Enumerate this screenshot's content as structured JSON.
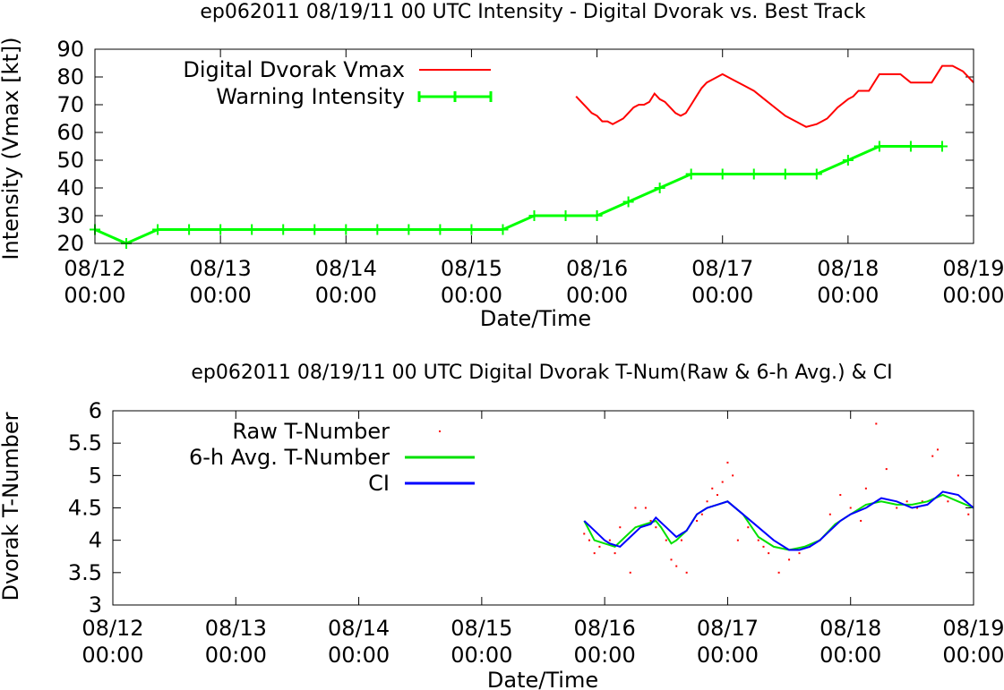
{
  "chart_data": [
    {
      "type": "line",
      "title": "ep062011 08/19/11  00 UTC Intensity - Digital Dvorak vs. Best Track",
      "xlabel": "Date/Time",
      "ylabel": "Intensity (Vmax [kt])",
      "xlim": [
        "08/12 00:00",
        "08/19 00:00"
      ],
      "ylim": [
        20,
        90
      ],
      "yticks": [
        "20",
        "30",
        "40",
        "50",
        "60",
        "70",
        "80",
        "90"
      ],
      "xticks": [
        {
          "date": "08/12",
          "time": "00:00"
        },
        {
          "date": "08/13",
          "time": "00:00"
        },
        {
          "date": "08/14",
          "time": "00:00"
        },
        {
          "date": "08/15",
          "time": "00:00"
        },
        {
          "date": "08/16",
          "time": "00:00"
        },
        {
          "date": "08/17",
          "time": "00:00"
        },
        {
          "date": "08/18",
          "time": "00:00"
        },
        {
          "date": "08/19",
          "time": "00:00"
        }
      ],
      "legend_position": "top-left",
      "series": [
        {
          "name": "Digital Dvorak Vmax",
          "color": "#ff0000",
          "style": "line",
          "x": [
            "08/15 20:00",
            "08/15 21:00",
            "08/15 22:00",
            "08/15 23:00",
            "08/16 00:00",
            "08/16 01:00",
            "08/16 02:00",
            "08/16 03:00",
            "08/16 04:00",
            "08/16 05:00",
            "08/16 06:00",
            "08/16 07:00",
            "08/16 08:00",
            "08/16 09:00",
            "08/16 10:00",
            "08/16 11:00",
            "08/16 12:00",
            "08/16 13:00",
            "08/16 14:00",
            "08/16 15:00",
            "08/16 16:00",
            "08/16 17:00",
            "08/16 18:00",
            "08/16 19:00",
            "08/16 20:00",
            "08/16 21:00",
            "08/16 22:00",
            "08/17 00:00",
            "08/17 02:00",
            "08/17 04:00",
            "08/17 06:00",
            "08/17 08:00",
            "08/17 10:00",
            "08/17 12:00",
            "08/17 14:00",
            "08/17 15:00",
            "08/17 16:00",
            "08/17 18:00",
            "08/17 19:00",
            "08/17 20:00",
            "08/17 22:00",
            "08/18 00:00",
            "08/18 01:00",
            "08/18 02:00",
            "08/18 04:00",
            "08/18 06:00",
            "08/18 08:00",
            "08/18 10:00",
            "08/18 12:00",
            "08/18 14:00",
            "08/18 16:00",
            "08/18 18:00",
            "08/18 20:00",
            "08/18 22:00",
            "08/19 00:00"
          ],
          "y": [
            73,
            71,
            69,
            67,
            66,
            64,
            64,
            63,
            64,
            65,
            67,
            69,
            70,
            70,
            71,
            74,
            72,
            71,
            69,
            67,
            66,
            67,
            70,
            73,
            76,
            78,
            79,
            81,
            79,
            77,
            75,
            72,
            69,
            66,
            64,
            63,
            62,
            63,
            64,
            65,
            69,
            72,
            73,
            75,
            75,
            81,
            81,
            81,
            78,
            78,
            78,
            84,
            84,
            82,
            78
          ]
        },
        {
          "name": "Warning Intensity",
          "color": "#00ff00",
          "style": "line-plus",
          "x": [
            "08/12 00:00",
            "08/12 06:00",
            "08/12 12:00",
            "08/12 18:00",
            "08/13 00:00",
            "08/13 06:00",
            "08/13 12:00",
            "08/13 18:00",
            "08/14 00:00",
            "08/14 06:00",
            "08/14 12:00",
            "08/14 18:00",
            "08/15 00:00",
            "08/15 06:00",
            "08/15 12:00",
            "08/15 18:00",
            "08/16 00:00",
            "08/16 06:00",
            "08/16 12:00",
            "08/16 18:00",
            "08/17 00:00",
            "08/17 06:00",
            "08/17 12:00",
            "08/17 18:00",
            "08/18 00:00",
            "08/18 06:00",
            "08/18 12:00",
            "08/18 18:00"
          ],
          "y": [
            25,
            20,
            25,
            25,
            25,
            25,
            25,
            25,
            25,
            25,
            25,
            25,
            25,
            25,
            30,
            30,
            30,
            35,
            40,
            45,
            45,
            45,
            45,
            45,
            50,
            55,
            55,
            55
          ]
        }
      ]
    },
    {
      "type": "line",
      "title": "ep062011 08/19/11  00 UTC Digital Dvorak T-Num(Raw & 6-h Avg.) & CI",
      "xlabel": "Date/Time",
      "ylabel": "Dvorak T-Number",
      "xlim": [
        "08/12 00:00",
        "08/19 00:00"
      ],
      "ylim": [
        3,
        6
      ],
      "yticks": [
        "3",
        "3.5",
        "4",
        "4.5",
        "5",
        "5.5",
        "6"
      ],
      "xticks": [
        {
          "date": "08/12",
          "time": "00:00"
        },
        {
          "date": "08/13",
          "time": "00:00"
        },
        {
          "date": "08/14",
          "time": "00:00"
        },
        {
          "date": "08/15",
          "time": "00:00"
        },
        {
          "date": "08/16",
          "time": "00:00"
        },
        {
          "date": "08/17",
          "time": "00:00"
        },
        {
          "date": "08/18",
          "time": "00:00"
        },
        {
          "date": "08/19",
          "time": "00:00"
        }
      ],
      "legend_position": "top-left",
      "series": [
        {
          "name": "Raw T-Number",
          "color": "#ff0000",
          "style": "dots",
          "x": [
            "08/15 20:00",
            "08/15 21:00",
            "08/15 22:00",
            "08/15 23:00",
            "08/16 01:00",
            "08/16 02:00",
            "08/16 03:00",
            "08/16 05:00",
            "08/16 06:00",
            "08/16 08:00",
            "08/16 09:00",
            "08/16 10:00",
            "08/16 12:00",
            "08/16 13:00",
            "08/16 14:00",
            "08/16 15:00",
            "08/16 16:00",
            "08/16 18:00",
            "08/16 19:00",
            "08/16 20:00",
            "08/16 21:00",
            "08/16 22:00",
            "08/16 23:00",
            "08/17 00:00",
            "08/17 01:00",
            "08/17 02:00",
            "08/17 04:00",
            "08/17 06:00",
            "08/17 07:00",
            "08/17 08:00",
            "08/17 10:00",
            "08/17 12:00",
            "08/17 14:00",
            "08/17 16:00",
            "08/17 18:00",
            "08/17 20:00",
            "08/17 22:00",
            "08/18 00:00",
            "08/18 02:00",
            "08/18 03:00",
            "08/18 05:00",
            "08/18 07:00",
            "08/18 09:00",
            "08/18 11:00",
            "08/18 13:00",
            "08/18 14:00",
            "08/18 16:00",
            "08/18 17:00",
            "08/18 19:00",
            "08/18 21:00",
            "08/18 23:00"
          ],
          "y": [
            4.1,
            4.0,
            3.8,
            3.9,
            4.0,
            3.8,
            4.2,
            3.5,
            4.5,
            4.5,
            4.3,
            4.2,
            4.0,
            3.7,
            3.6,
            4.0,
            3.5,
            4.3,
            4.4,
            4.6,
            4.8,
            4.7,
            4.9,
            5.2,
            5.0,
            4.0,
            4.2,
            4.0,
            3.9,
            3.8,
            3.5,
            3.7,
            3.8,
            3.9,
            4.0,
            4.4,
            4.7,
            4.5,
            4.3,
            4.8,
            5.8,
            5.1,
            4.5,
            4.6,
            4.5,
            4.6,
            5.3,
            5.4,
            4.6,
            5.0,
            4.4
          ]
        },
        {
          "name": "6-h Avg. T-Number",
          "color": "#00e000",
          "style": "line",
          "x": [
            "08/15 20:00",
            "08/15 22:00",
            "08/16 00:00",
            "08/16 02:00",
            "08/16 04:00",
            "08/16 06:00",
            "08/16 08:00",
            "08/16 10:00",
            "08/16 11:00",
            "08/16 13:00",
            "08/16 14:00",
            "08/16 16:00",
            "08/16 18:00",
            "08/16 20:00",
            "08/16 22:00",
            "08/17 00:00",
            "08/17 03:00",
            "08/17 06:00",
            "08/17 09:00",
            "08/17 12:00",
            "08/17 15:00",
            "08/17 18:00",
            "08/17 21:00",
            "08/18 00:00",
            "08/18 03:00",
            "08/18 06:00",
            "08/18 09:00",
            "08/18 12:00",
            "08/18 15:00",
            "08/18 18:00",
            "08/18 21:00",
            "08/19 00:00"
          ],
          "y": [
            4.3,
            4.0,
            3.95,
            3.9,
            4.05,
            4.2,
            4.25,
            4.3,
            4.2,
            3.95,
            4.0,
            4.15,
            4.4,
            4.5,
            4.55,
            4.6,
            4.4,
            4.05,
            3.9,
            3.85,
            3.9,
            4.0,
            4.25,
            4.4,
            4.55,
            4.6,
            4.55,
            4.55,
            4.6,
            4.7,
            4.6,
            4.5
          ]
        },
        {
          "name": "CI",
          "color": "#0000ff",
          "style": "line",
          "x": [
            "08/15 20:00",
            "08/15 22:00",
            "08/16 00:00",
            "08/16 01:00",
            "08/16 03:00",
            "08/16 05:00",
            "08/16 07:00",
            "08/16 09:00",
            "08/16 10:00",
            "08/16 12:00",
            "08/16 14:00",
            "08/16 16:00",
            "08/16 18:00",
            "08/16 20:00",
            "08/16 22:00",
            "08/17 00:00",
            "08/17 03:00",
            "08/17 06:00",
            "08/17 09:00",
            "08/17 12:00",
            "08/17 14:00",
            "08/17 16:00",
            "08/17 18:00",
            "08/17 20:00",
            "08/17 22:00",
            "08/18 00:00",
            "08/18 03:00",
            "08/18 06:00",
            "08/18 09:00",
            "08/18 12:00",
            "08/18 15:00",
            "08/18 18:00",
            "08/18 21:00",
            "08/19 00:00"
          ],
          "y": [
            4.3,
            4.15,
            4.0,
            3.95,
            3.9,
            4.05,
            4.2,
            4.25,
            4.35,
            4.2,
            4.05,
            4.15,
            4.4,
            4.5,
            4.55,
            4.6,
            4.4,
            4.2,
            4.0,
            3.85,
            3.85,
            3.9,
            4.0,
            4.15,
            4.3,
            4.4,
            4.5,
            4.65,
            4.6,
            4.5,
            4.55,
            4.75,
            4.7,
            4.5
          ]
        }
      ]
    }
  ]
}
